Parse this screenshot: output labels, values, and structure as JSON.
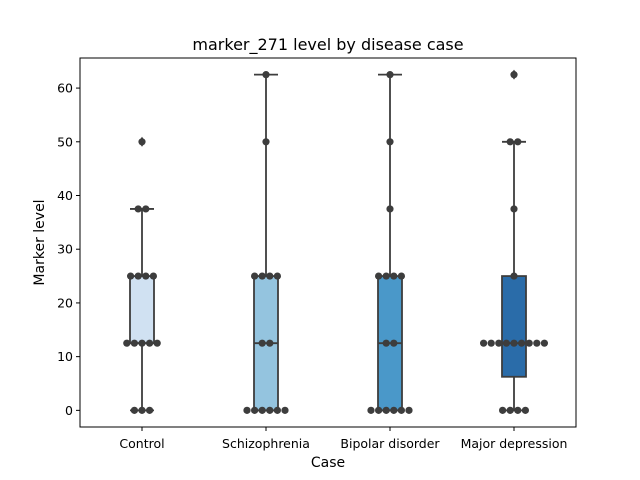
{
  "chart_data": {
    "type": "box",
    "title": "marker_271 level by disease case",
    "xlabel": "Case",
    "ylabel": "Marker level",
    "ylim": [
      -3.1,
      65.6
    ],
    "yticks": [
      0,
      10,
      20,
      30,
      40,
      50,
      60
    ],
    "categories": [
      "Control",
      "Schizophrenia",
      "Bipolar disorder",
      "Major depression"
    ],
    "colors": [
      "#d0e1f2",
      "#94c4df",
      "#4a98c9",
      "#2a6ca9"
    ],
    "boxes": [
      {
        "q1": 12.5,
        "median": 12.5,
        "q3": 25,
        "whislo": 0,
        "whishi": 37.5,
        "fliers": [
          50
        ]
      },
      {
        "q1": 0,
        "median": 12.5,
        "q3": 25,
        "whislo": 0,
        "whishi": 62.5,
        "fliers": []
      },
      {
        "q1": 0,
        "median": 12.5,
        "q3": 25,
        "whislo": 0,
        "whishi": 62.5,
        "fliers": []
      },
      {
        "q1": 6.25,
        "median": 12.5,
        "q3": 25,
        "whislo": 0,
        "whishi": 50,
        "fliers": [
          62.5
        ]
      }
    ],
    "points": [
      [
        0,
        0,
        0,
        12.5,
        12.5,
        12.5,
        12.5,
        12.5,
        25,
        25,
        25,
        25,
        37.5,
        37.5,
        50
      ],
      [
        0,
        0,
        0,
        0,
        0,
        0,
        12.5,
        12.5,
        25,
        25,
        25,
        25,
        50,
        62.5
      ],
      [
        0,
        0,
        0,
        0,
        0,
        0,
        12.5,
        12.5,
        25,
        25,
        25,
        25,
        37.5,
        50,
        62.5
      ],
      [
        0,
        0,
        0,
        0,
        12.5,
        12.5,
        12.5,
        12.5,
        12.5,
        12.5,
        12.5,
        12.5,
        12.5,
        25,
        37.5,
        50,
        50,
        62.5
      ]
    ]
  }
}
